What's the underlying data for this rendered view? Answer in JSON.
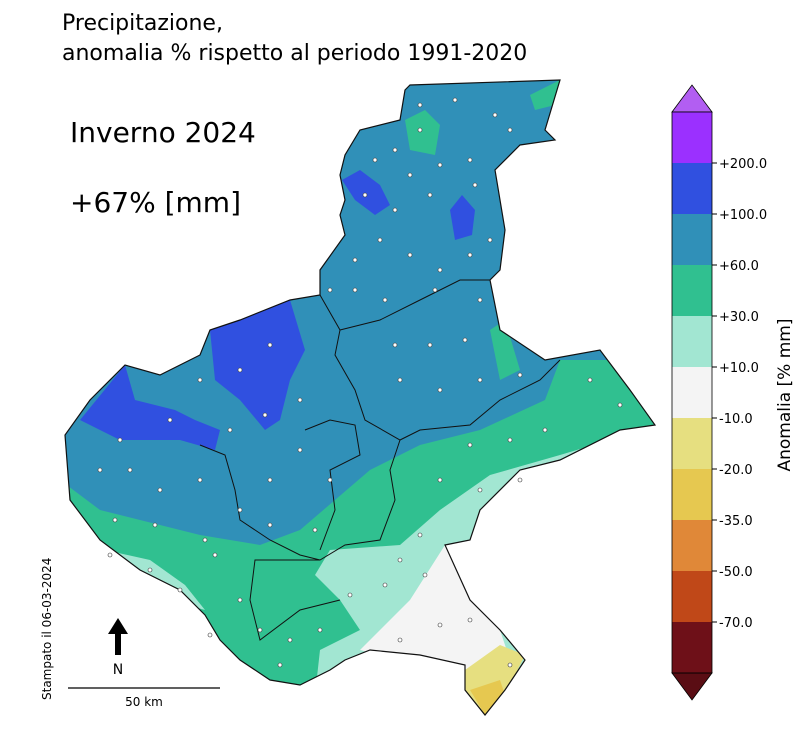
{
  "header": {
    "title_line1": "Precipitazione,",
    "title_line2": "anomalia % rispetto al periodo 1991-2020"
  },
  "season": "Inverno 2024",
  "anomaly": "+67% [mm]",
  "colorbar": {
    "label": "Anomalia [% mm]",
    "colors": [
      "#b25ef2",
      "#9b30ff",
      "#3050e0",
      "#3090b8",
      "#30c090",
      "#a2e6d2",
      "#f4f4f4",
      "#e6df80",
      "#e6c850",
      "#e08838",
      "#c04818",
      "#6e1018",
      "#5a0d14"
    ],
    "ticks": [
      "+200.0",
      "+100.0",
      "+60.0",
      "+30.0",
      "+10.0",
      "-10.0",
      "-20.0",
      "-35.0",
      "-50.0",
      "-70.0"
    ]
  },
  "printed": "Stampato il 06-03-2024",
  "north": "N",
  "scale": "50 km"
}
